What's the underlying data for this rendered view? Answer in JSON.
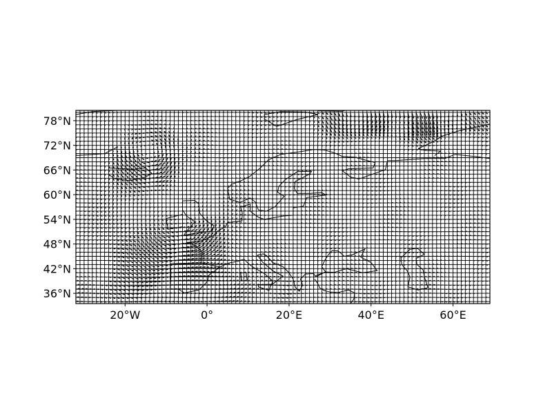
{
  "map": {
    "type": "wind-vector-field",
    "projection": "PlateCarree",
    "extent": {
      "lon": [
        -32,
        69
      ],
      "lat": [
        33.5,
        80.5
      ]
    },
    "grid_step_deg": 1,
    "x_ticks": [
      {
        "lon": -20,
        "label": "20°W"
      },
      {
        "lon": 0,
        "label": "0°"
      },
      {
        "lon": 20,
        "label": "20°E"
      },
      {
        "lon": 40,
        "label": "40°E"
      },
      {
        "lon": 60,
        "label": "60°E"
      }
    ],
    "y_ticks": [
      {
        "lat": 36,
        "label": "36°N"
      },
      {
        "lat": 42,
        "label": "42°N"
      },
      {
        "lat": 48,
        "label": "48°N"
      },
      {
        "lat": 54,
        "label": "54°N"
      },
      {
        "lat": 60,
        "label": "60°N"
      },
      {
        "lat": 66,
        "label": "66°N"
      },
      {
        "lat": 72,
        "label": "72°N"
      },
      {
        "lat": 78,
        "label": "78°N"
      }
    ],
    "gridlines": true,
    "coastlines": true,
    "colors": {
      "lines": "#000000",
      "background": "#ffffff"
    }
  }
}
